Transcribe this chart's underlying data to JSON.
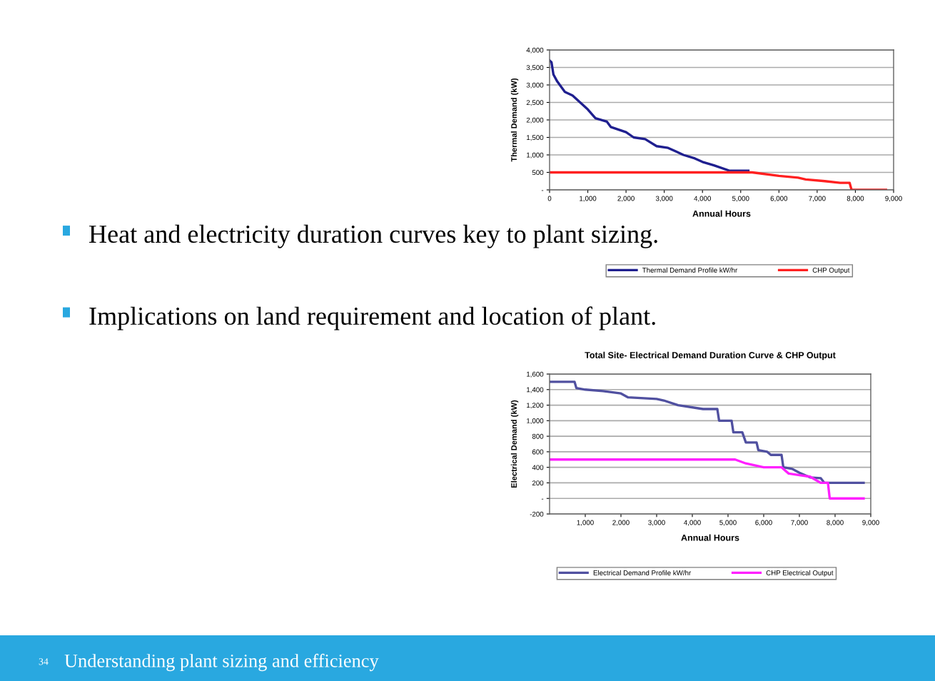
{
  "chart_data": [
    {
      "type": "other",
      "annotations": [
        "Heat and electricity duration curves key to plant sizing.",
        "Implications on land requirement and location of plant.",
        "34",
        "Understanding plant sizing and efficiency"
      ]
    },
    {
      "type": "line",
      "xlabel": "Annual Hours",
      "ylabel": "Thermal Demand (kW)",
      "xlim": [
        0,
        9000
      ],
      "ylim": [
        0,
        4000
      ],
      "xticks": [
        0,
        {
          "value": 1000,
          "label": "1,000"
        },
        {
          "value": 2000,
          "label": "2,000"
        },
        {
          "value": 3000,
          "label": "3,000"
        },
        {
          "value": 4000,
          "label": "4,000"
        },
        {
          "value": 5000,
          "label": "5,000"
        },
        {
          "value": 6000,
          "label": "6,000"
        },
        {
          "value": 7000,
          "label": "7,000"
        },
        {
          "value": 8000,
          "label": "8,000"
        },
        {
          "value": 9000,
          "label": "9,000"
        }
      ],
      "yticks": [
        {
          "value": 0,
          "label": "-"
        },
        500,
        {
          "value": 1000,
          "label": "1,000"
        },
        {
          "value": 1500,
          "label": "1,500"
        },
        {
          "value": 2000,
          "label": "2,000"
        },
        {
          "value": 2500,
          "label": "2,500"
        },
        {
          "value": 3000,
          "label": "3,000"
        },
        {
          "value": 3500,
          "label": "3,500"
        },
        {
          "value": 4000,
          "label": "4,000"
        }
      ],
      "grid": "y",
      "legend": "bottom",
      "marker": "none",
      "series": [
        {
          "name": "Thermal Demand Profile kW/hr",
          "color": "#1f1f8f",
          "x": [
            0,
            50,
            100,
            200,
            400,
            600,
            800,
            1000,
            1200,
            1500,
            1600,
            2000,
            2200,
            2500,
            2800,
            3100,
            3300,
            3500,
            3800,
            4000,
            4300,
            4700,
            5200
          ],
          "values": [
            3700,
            3650,
            3300,
            3100,
            2800,
            2700,
            2500,
            2300,
            2050,
            1950,
            1800,
            1650,
            1500,
            1450,
            1250,
            1200,
            1100,
            1000,
            900,
            800,
            700,
            550,
            550
          ]
        },
        {
          "name": "CHP Output",
          "color": "#ff2020",
          "x": [
            0,
            5000,
            5300,
            6000,
            6500,
            6700,
            7200,
            7600,
            7850,
            7900,
            8800
          ],
          "values": [
            500,
            500,
            500,
            400,
            350,
            300,
            250,
            200,
            200,
            0,
            0
          ]
        }
      ]
    },
    {
      "type": "line",
      "title": "Total Site- Electrical Demand Duration Curve & CHP Output",
      "xlabel": "Annual Hours",
      "ylabel": "Electrical Demand (kW)",
      "xlim": [
        0,
        9000
      ],
      "ylim": [
        -200,
        1600
      ],
      "xticks": [
        {
          "value": 1000,
          "label": "1,000"
        },
        {
          "value": 2000,
          "label": "2,000"
        },
        {
          "value": 3000,
          "label": "3,000"
        },
        {
          "value": 4000,
          "label": "4,000"
        },
        {
          "value": 5000,
          "label": "5,000"
        },
        {
          "value": 6000,
          "label": "6,000"
        },
        {
          "value": 7000,
          "label": "7,000"
        },
        {
          "value": 8000,
          "label": "8,000"
        },
        {
          "value": 9000,
          "label": "9,000"
        }
      ],
      "yticks": [
        -200,
        {
          "value": 0,
          "label": "-"
        },
        200,
        400,
        600,
        800,
        {
          "value": 1000,
          "label": "1,000"
        },
        {
          "value": 1200,
          "label": "1,200"
        },
        {
          "value": 1400,
          "label": "1,400"
        },
        {
          "value": 1600,
          "label": "1,600"
        }
      ],
      "grid": "y",
      "legend": "bottom",
      "marker": "none",
      "series": [
        {
          "name": "Electrical Demand Profile kW/hr",
          "color": "#5050a0",
          "x": [
            0,
            700,
            750,
            1000,
            1500,
            2000,
            2200,
            3000,
            3200,
            3600,
            4300,
            4700,
            4750,
            5100,
            5150,
            5400,
            5500,
            5800,
            5850,
            6100,
            6200,
            6500,
            6550,
            6800,
            7000,
            7300,
            7600,
            7700,
            8800
          ],
          "values": [
            1500,
            1500,
            1420,
            1400,
            1380,
            1350,
            1300,
            1280,
            1260,
            1200,
            1150,
            1150,
            1000,
            1000,
            850,
            850,
            720,
            720,
            620,
            600,
            560,
            560,
            400,
            380,
            330,
            270,
            260,
            200,
            200
          ]
        },
        {
          "name": "CHP Electrical Output",
          "color": "#ff20ff",
          "x": [
            0,
            5200,
            5500,
            6000,
            6500,
            6700,
            7000,
            7300,
            7600,
            7800,
            7850,
            8800
          ],
          "values": [
            500,
            500,
            450,
            400,
            400,
            320,
            300,
            280,
            200,
            200,
            0,
            0
          ]
        }
      ]
    }
  ]
}
